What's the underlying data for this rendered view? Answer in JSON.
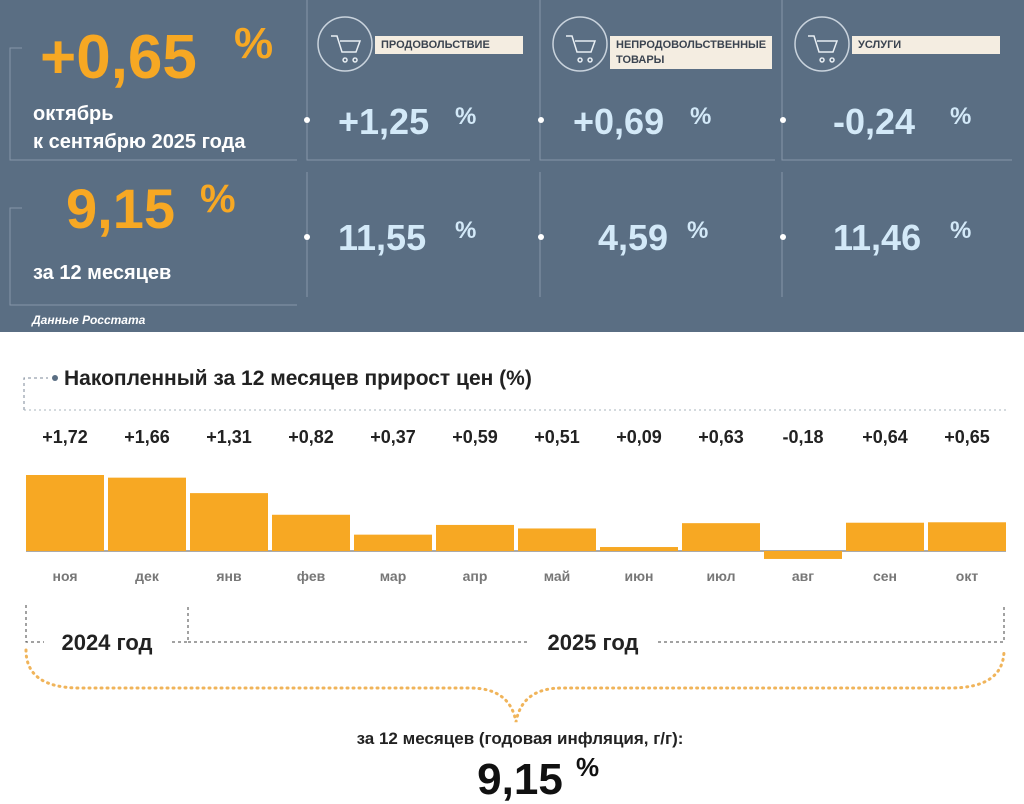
{
  "panel": {
    "monthly": {
      "value": "+0,65",
      "unit": "%",
      "caption": [
        "октябрь",
        "к сентябрю 2025 года"
      ]
    },
    "annual": {
      "value": "9,15",
      "unit": "%",
      "caption": "за 12 месяцев"
    },
    "groups": [
      {
        "label": [
          "ПРОДОВОЛЬСТВИЕ"
        ],
        "monthly": {
          "value": "+1,25",
          "unit": "%"
        },
        "annual": {
          "value": "11,55",
          "unit": "%"
        }
      },
      {
        "label": [
          "НЕПРОДОВОЛЬСТВЕННЫЕ",
          "ТОВАРЫ"
        ],
        "monthly": {
          "value": "+0,69",
          "unit": "%"
        },
        "annual": {
          "value": "4,59",
          "unit": "%"
        }
      },
      {
        "label": [
          "УСЛУГИ"
        ],
        "monthly": {
          "value": "-0,24",
          "unit": "%"
        },
        "annual": {
          "value": "11,46",
          "unit": "%"
        }
      }
    ],
    "source": "Данные Росстата"
  },
  "chart_data": {
    "type": "bar",
    "title": "Накопленный за 12 месяцев прирост цен (%)",
    "categories": [
      "ноя",
      "дек",
      "янв",
      "фев",
      "мар",
      "апр",
      "май",
      "июн",
      "июл",
      "авг",
      "сен",
      "окт"
    ],
    "values": [
      1.72,
      1.66,
      1.31,
      0.82,
      0.37,
      0.59,
      0.51,
      0.09,
      0.63,
      -0.18,
      0.64,
      0.65
    ],
    "value_labels": [
      "+1,72",
      "+1,66",
      "+1,31",
      "+0,82",
      "+0,37",
      "+0,59",
      "+0,51",
      "+0,09",
      "+0,63",
      "-0,18",
      "+0,64",
      "+0,65"
    ],
    "color": "#f7a823",
    "periods": [
      "2024 год",
      "2025 год"
    ]
  },
  "summary": {
    "caption": "за 12 месяцев (годовая инфляция, г/г):",
    "value": "9,15",
    "unit": "%"
  }
}
